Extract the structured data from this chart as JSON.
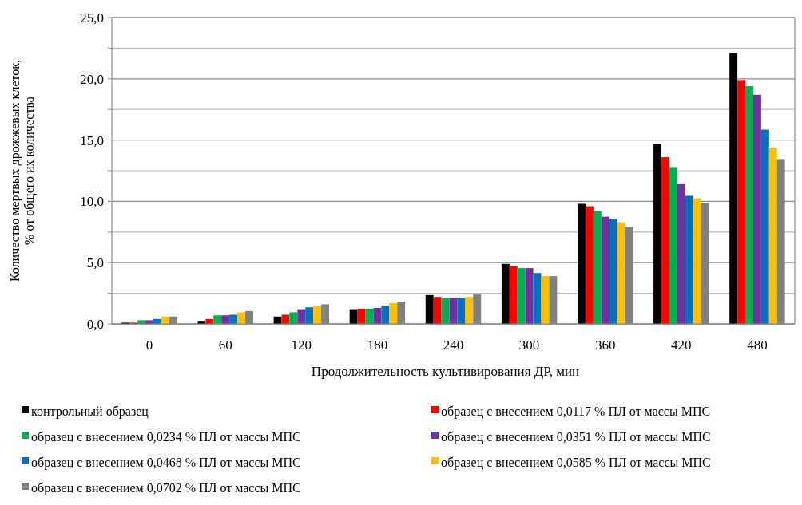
{
  "chart_data": {
    "type": "bar",
    "xlabel": "Продолжительность культивирования  ДР, мин",
    "ylabel": "Количество мертвых дрожжевых клеток,\n% от общего их количества",
    "categories": [
      "0",
      "60",
      "120",
      "180",
      "240",
      "300",
      "360",
      "420",
      "480"
    ],
    "series": [
      {
        "name": "контрольный образец",
        "color": "#000000",
        "values": [
          0.1,
          0.25,
          0.6,
          1.2,
          2.35,
          4.9,
          9.8,
          14.7,
          22.1
        ]
      },
      {
        "name": "образец с внесением 0,0117 % ПЛ от массы МПС",
        "color": "#ff0000",
        "values": [
          0.1,
          0.4,
          0.75,
          1.25,
          2.2,
          4.75,
          9.6,
          13.6,
          19.9
        ]
      },
      {
        "name": "образец с внесением 0,0234 % ПЛ от массы МПС",
        "color": "#00b050",
        "values": [
          0.3,
          0.7,
          0.95,
          1.25,
          2.15,
          4.55,
          9.2,
          12.8,
          19.4
        ]
      },
      {
        "name": "образец с внесением 0,0351 % ПЛ от массы МПС",
        "color": "#7030a0",
        "values": [
          0.3,
          0.7,
          1.2,
          1.3,
          2.15,
          4.55,
          8.75,
          11.4,
          18.7
        ]
      },
      {
        "name": "образец с внесением 0,0468 % ПЛ от массы МПС",
        "color": "#0070c0",
        "values": [
          0.4,
          0.75,
          1.35,
          1.5,
          2.1,
          4.15,
          8.6,
          10.45,
          15.85
        ]
      },
      {
        "name": "образец с внесением 0,0585 % ПЛ от массы МПС",
        "color": "#ffc000",
        "values": [
          0.6,
          0.95,
          1.5,
          1.7,
          2.2,
          3.9,
          8.3,
          10.25,
          14.4
        ]
      },
      {
        "name": "образец с внесением 0,0702 % ПЛ от массы МПС",
        "color": "#808080",
        "values": [
          0.6,
          1.05,
          1.6,
          1.8,
          2.4,
          3.9,
          7.9,
          9.9,
          13.45
        ]
      }
    ],
    "ylim": [
      0,
      25
    ],
    "yticks": [
      {
        "value": 0,
        "label": "0,0"
      },
      {
        "value": 2.5,
        "label": null
      },
      {
        "value": 5,
        "label": "5,0"
      },
      {
        "value": 7.5,
        "label": null
      },
      {
        "value": 10,
        "label": "10,0"
      },
      {
        "value": 12.5,
        "label": null
      },
      {
        "value": 15,
        "label": "15,0"
      },
      {
        "value": 17.5,
        "label": null
      },
      {
        "value": 20,
        "label": "20,0"
      },
      {
        "value": 22.5,
        "label": null
      },
      {
        "value": 25,
        "label": "25,0"
      }
    ],
    "grid": true,
    "legend": "bottom"
  }
}
